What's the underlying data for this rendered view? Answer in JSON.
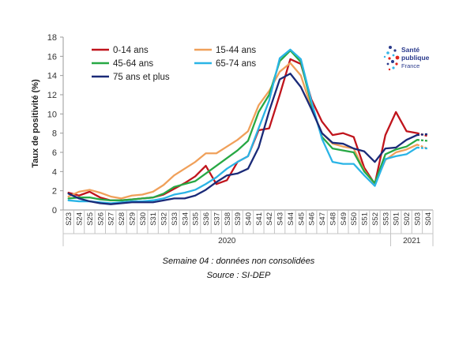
{
  "chart_data": {
    "type": "line",
    "ylabel": "Taux de positivité (%)",
    "ylim": [
      0,
      18
    ],
    "yticks": [
      0,
      2,
      4,
      6,
      8,
      10,
      12,
      14,
      16,
      18
    ],
    "categories": [
      "S23",
      "S24",
      "S25",
      "S26",
      "S27",
      "S28",
      "S29",
      "S30",
      "S31",
      "S32",
      "S33",
      "S34",
      "S35",
      "S36",
      "S37",
      "S38",
      "S39",
      "S40",
      "S41",
      "S42",
      "S43",
      "S44",
      "S45",
      "S46",
      "S47",
      "S48",
      "S49",
      "S50",
      "S51",
      "S52",
      "S53",
      "S01",
      "S02",
      "S03",
      "S04"
    ],
    "year_groups": [
      {
        "label": "2020",
        "from": "S23",
        "to": "S53"
      },
      {
        "label": "2021",
        "from": "S01",
        "to": "S04"
      }
    ],
    "series": [
      {
        "name": "0-14 ans",
        "color": "#c0141c",
        "values": [
          1.8,
          1.5,
          1.9,
          1.3,
          1.0,
          1.0,
          1.1,
          1.2,
          1.3,
          1.6,
          2.2,
          2.8,
          3.5,
          4.6,
          2.7,
          3.1,
          5.0,
          5.6,
          8.3,
          8.5,
          12.0,
          15.7,
          15.2,
          11.5,
          9.2,
          7.8,
          8.0,
          7.6,
          4.4,
          2.7,
          7.8,
          10.2,
          8.2,
          8.0,
          7.7
        ],
        "dashed_last": true
      },
      {
        "name": "15-44 ans",
        "color": "#f0a05a",
        "values": [
          1.4,
          1.9,
          2.1,
          1.8,
          1.4,
          1.2,
          1.5,
          1.6,
          1.9,
          2.6,
          3.6,
          4.3,
          5.0,
          5.9,
          5.9,
          6.6,
          7.3,
          8.2,
          10.9,
          12.4,
          14.4,
          15.3,
          14.0,
          10.6,
          8.0,
          6.9,
          6.6,
          6.4,
          4.1,
          2.7,
          5.2,
          6.0,
          6.3,
          6.8,
          6.4
        ],
        "dashed_last": true
      },
      {
        "name": "45-64 ans",
        "color": "#27a844",
        "values": [
          1.2,
          1.3,
          1.3,
          1.1,
          1.0,
          1.0,
          1.1,
          1.2,
          1.3,
          1.7,
          2.4,
          2.7,
          3.0,
          3.8,
          4.6,
          5.4,
          6.2,
          7.2,
          10.2,
          12.0,
          15.5,
          16.6,
          15.4,
          11.0,
          7.6,
          6.4,
          6.2,
          6.0,
          4.0,
          2.8,
          5.8,
          6.3,
          6.6,
          7.3,
          7.2
        ],
        "dashed_last": true
      },
      {
        "name": "65-74 ans",
        "color": "#2ab4e6",
        "values": [
          1.0,
          0.9,
          0.9,
          0.8,
          0.7,
          0.8,
          0.9,
          0.9,
          1.0,
          1.2,
          1.6,
          1.8,
          2.1,
          2.7,
          3.4,
          4.3,
          5.0,
          5.6,
          8.5,
          11.4,
          15.8,
          16.7,
          15.7,
          11.3,
          7.4,
          5.0,
          4.8,
          4.8,
          3.6,
          2.5,
          5.3,
          5.6,
          5.8,
          6.5,
          6.4
        ],
        "dashed_last": true
      },
      {
        "name": "75 ans et plus",
        "color": "#1a2a78",
        "values": [
          1.7,
          1.2,
          0.9,
          0.7,
          0.6,
          0.7,
          0.8,
          0.8,
          0.8,
          1.0,
          1.2,
          1.2,
          1.5,
          2.1,
          2.9,
          3.6,
          3.8,
          4.3,
          6.5,
          10.3,
          13.6,
          14.2,
          12.8,
          10.5,
          8.0,
          7.0,
          6.9,
          6.4,
          6.1,
          5.0,
          6.4,
          6.5,
          7.3,
          7.8,
          7.9
        ],
        "dashed_last": true
      }
    ]
  },
  "logo": {
    "line1": "Santé",
    "line2": "publique",
    "line3": "France",
    "dot_colors": [
      "#e2231a",
      "#2a3a8c",
      "#35b6e9"
    ]
  },
  "notes": {
    "line1": "Semaine 04 : données non consolidées",
    "line2": "Source : SI-DEP"
  }
}
